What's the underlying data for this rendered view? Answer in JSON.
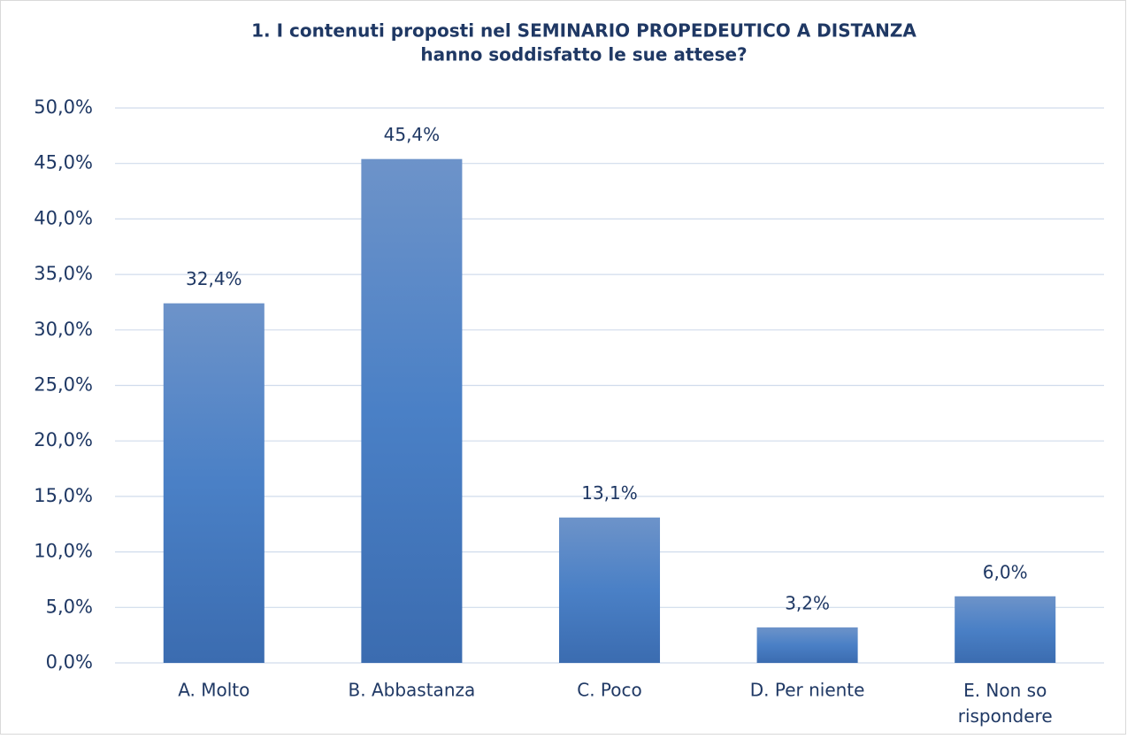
{
  "chart_data": {
    "type": "bar",
    "title": [
      "1.    I contenuti  proposti  nel SEMINARIO PROPEDEUTICO A DISTANZA",
      "hanno soddisfatto le sue attese?"
    ],
    "categories": [
      "A. Molto",
      "B. Abbastanza",
      "C. Poco",
      "D. Per niente",
      "E. Non so rispondere"
    ],
    "values": [
      32.4,
      45.4,
      13.1,
      3.2,
      6.0
    ],
    "value_labels": [
      "32,4%",
      "45,4%",
      "13,1%",
      "3,2%",
      "6,0%"
    ],
    "color": "#4a7cc0",
    "ylim": [
      0,
      50
    ],
    "yticks": [
      {
        "value": 0,
        "label": "0,0%"
      },
      {
        "value": 5,
        "label": "5,0%"
      },
      {
        "value": 10,
        "label": "10,0%"
      },
      {
        "value": 15,
        "label": "15,0%"
      },
      {
        "value": 20,
        "label": "20,0%"
      },
      {
        "value": 25,
        "label": "25,0%"
      },
      {
        "value": 30,
        "label": "30,0%"
      },
      {
        "value": 35,
        "label": "35,0%"
      },
      {
        "value": 40,
        "label": "40,0%"
      },
      {
        "value": 45,
        "label": "45,0%"
      },
      {
        "value": 50,
        "label": "50,0%"
      }
    ],
    "grid": true
  }
}
